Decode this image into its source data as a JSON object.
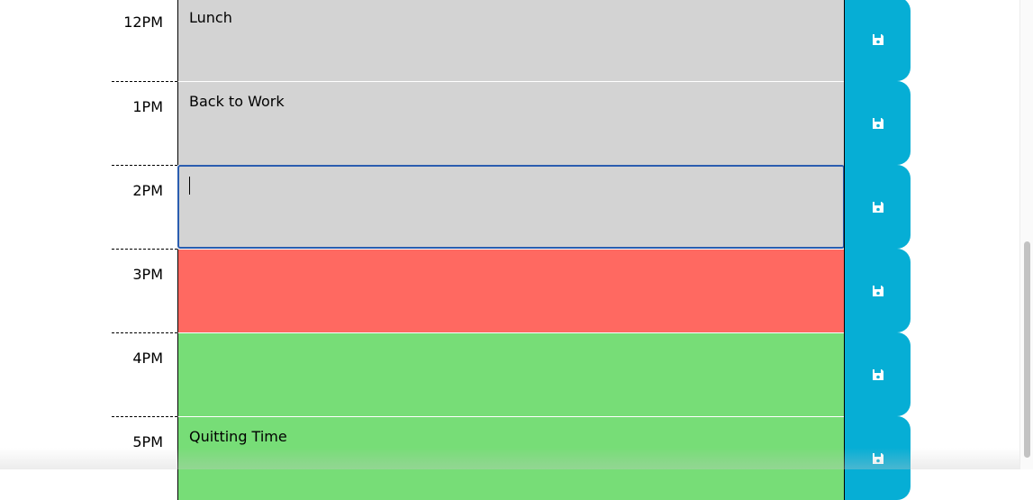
{
  "rows": [
    {
      "hour": "12PM",
      "text": "Lunch",
      "state": "past"
    },
    {
      "hour": "1PM",
      "text": "Back to Work",
      "state": "past"
    },
    {
      "hour": "2PM",
      "text": "",
      "state": "past"
    },
    {
      "hour": "3PM",
      "text": "",
      "state": "present"
    },
    {
      "hour": "4PM",
      "text": "",
      "state": "future"
    },
    {
      "hour": "5PM",
      "text": "Quitting Time",
      "state": "future"
    }
  ],
  "save_icon": "floppy-disk-icon",
  "colors": {
    "past": "#d3d3d3",
    "present": "#ff6961",
    "future": "#77dd77",
    "save_button": "#06aed5"
  }
}
